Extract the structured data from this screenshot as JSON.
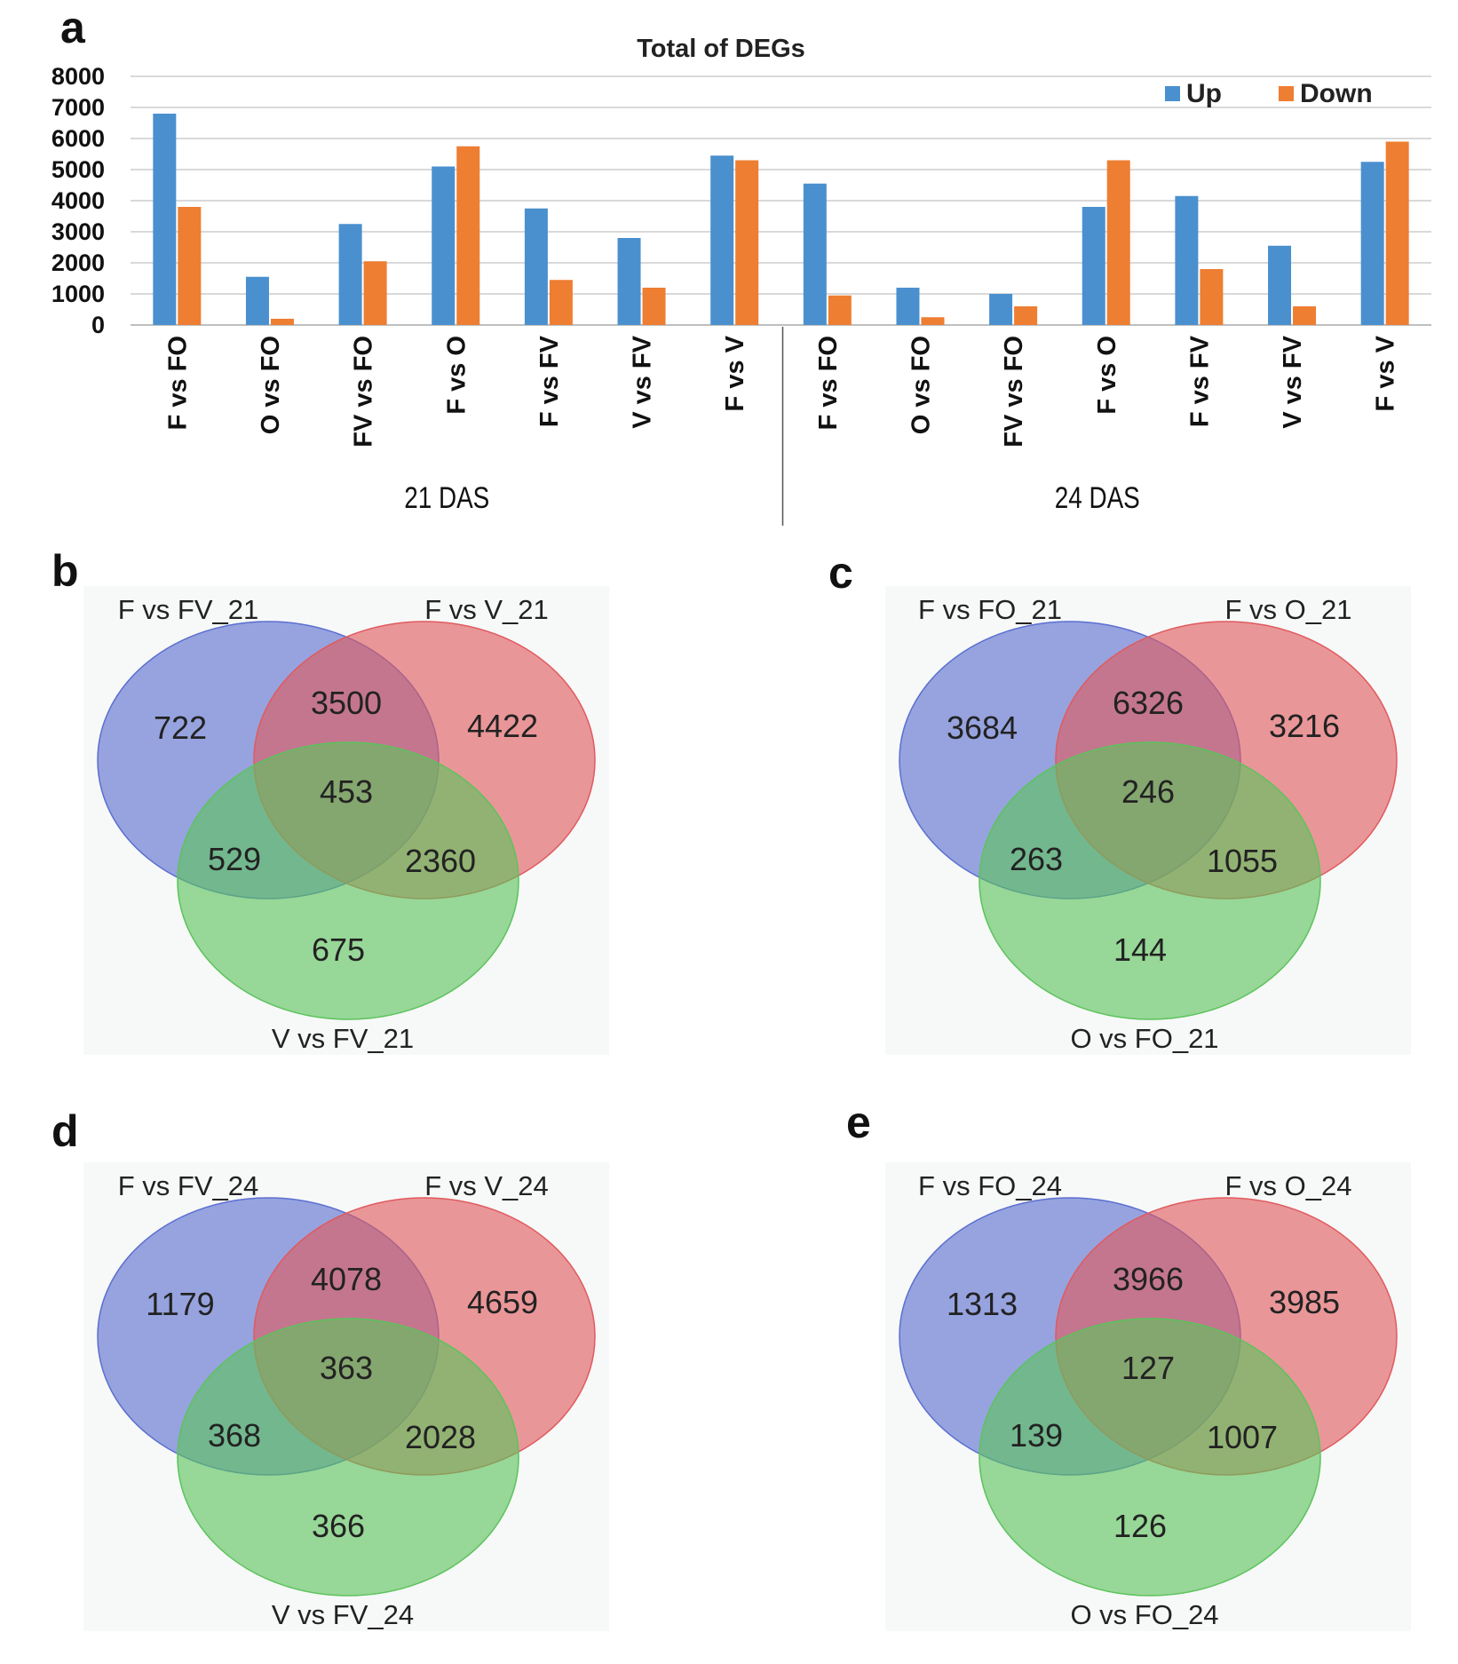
{
  "chart_data": [
    {
      "panel": "a",
      "type": "bar",
      "title": "Total of DEGs",
      "xlabel": "",
      "ylabel": "",
      "ylim": [
        0,
        8000
      ],
      "yticks": [
        "0",
        "1000",
        "2000",
        "3000",
        "4000",
        "5000",
        "6000",
        "7000",
        "8000"
      ],
      "grid": true,
      "legend_position": "top-right",
      "categories": [
        "F vs FO",
        "O vs FO",
        "FV vs FO",
        "F vs O",
        "F vs FV",
        "V vs FV",
        "F vs V",
        "F vs FO",
        "O vs FO",
        "FV vs FO",
        "F vs O",
        "F vs FV",
        "V vs FV",
        "F vs V"
      ],
      "groups": [
        {
          "label": "21 DAS",
          "count": 7
        },
        {
          "label": "24 DAS",
          "count": 7
        }
      ],
      "series": [
        {
          "name": "Up",
          "color": "#4a90cf",
          "values": [
            6800,
            1550,
            3250,
            5100,
            3750,
            2800,
            5450,
            4550,
            1200,
            1000,
            3800,
            4150,
            2550,
            5250
          ]
        },
        {
          "name": "Down",
          "color": "#ee7e32",
          "values": [
            3800,
            200,
            2050,
            5750,
            1450,
            1200,
            5300,
            950,
            250,
            600,
            5300,
            1800,
            600,
            5900
          ]
        }
      ]
    },
    {
      "panel": "b",
      "type": "venn",
      "sets": [
        "F vs FV_21",
        "F vs V_21",
        "V vs FV_21"
      ],
      "regions": {
        "a_only": "722",
        "b_only": "4422",
        "c_only": "675",
        "ab": "3500",
        "ac": "529",
        "bc": "2360",
        "abc": "453"
      }
    },
    {
      "panel": "c",
      "type": "venn",
      "sets": [
        "F vs FO_21",
        "F vs O_21",
        "O vs FO_21"
      ],
      "regions": {
        "a_only": "3684",
        "b_only": "3216",
        "c_only": "144",
        "ab": "6326",
        "ac": "263",
        "bc": "1055",
        "abc": "246"
      }
    },
    {
      "panel": "d",
      "type": "venn",
      "sets": [
        "F vs FV_24",
        "F vs V_24",
        "V vs FV_24"
      ],
      "regions": {
        "a_only": "1179",
        "b_only": "4659",
        "c_only": "366",
        "ab": "4078",
        "ac": "368",
        "bc": "2028",
        "abc": "363"
      }
    },
    {
      "panel": "e",
      "type": "venn",
      "sets": [
        "F vs FO_24",
        "F vs O_24",
        "O vs FO_24"
      ],
      "regions": {
        "a_only": "1313",
        "b_only": "3985",
        "c_only": "126",
        "ab": "3966",
        "ac": "139",
        "bc": "1007",
        "abc": "127"
      }
    }
  ],
  "colors": {
    "venn_a": "#5a6fd0",
    "venn_b": "#e05a5e",
    "venn_c": "#5cc35c"
  }
}
